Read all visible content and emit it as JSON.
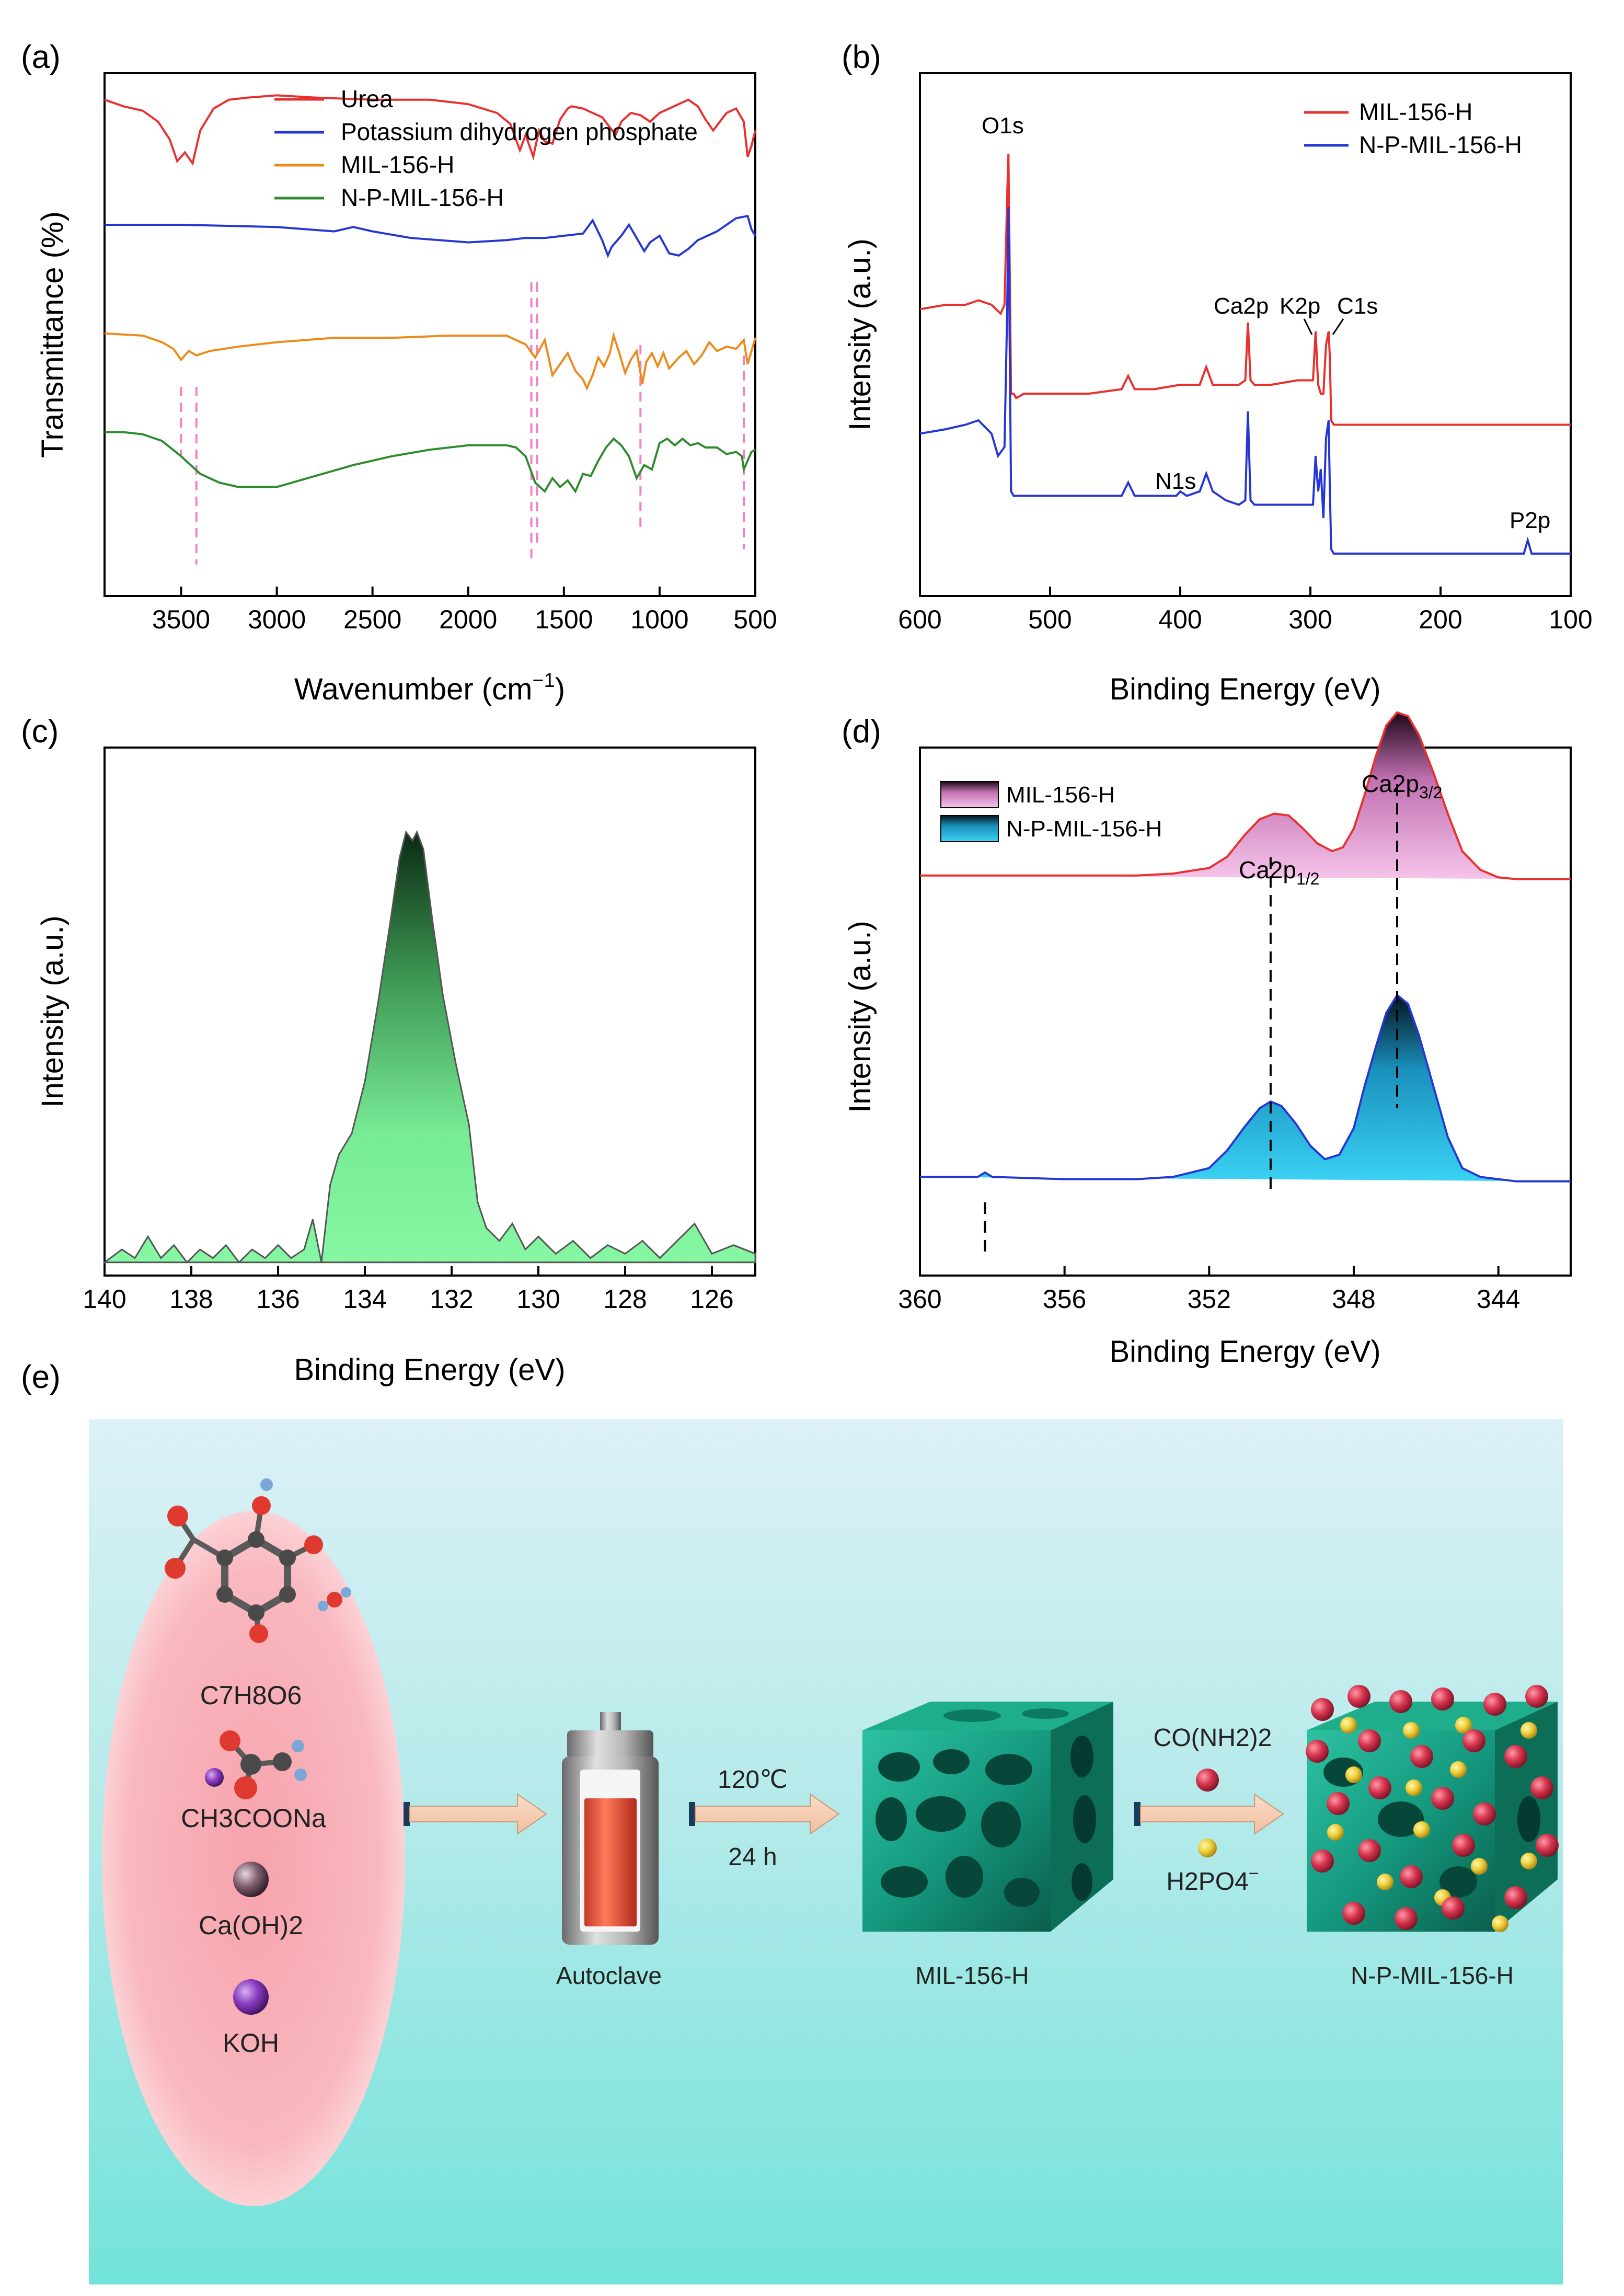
{
  "figure": {
    "panel_labels": [
      "(a)",
      "(b)",
      "(c)",
      "(d)",
      "(e)"
    ],
    "colors": {
      "red": "#e8302e",
      "blue": "#2437d6",
      "orange": "#ee8a1c",
      "green": "#2e8b2e",
      "pink_dash": "#f080c8",
      "axis": "#000000"
    }
  },
  "chart_data": [
    {
      "id": "a",
      "type": "line",
      "xlabel": "Wavenumber (cm",
      "xlabel_sup": "−1",
      "xlabel_tail": ")",
      "ylabel": "Transmittance (%)",
      "xlim": [
        3900,
        500
      ],
      "xticks": [
        "3500",
        "3000",
        "2500",
        "2000",
        "1500",
        "1000",
        "500"
      ],
      "xtick_values": [
        3500,
        3000,
        2500,
        2000,
        1500,
        1000,
        500
      ],
      "legend": [
        "Urea",
        "Potassium dihydrogen phosphate",
        "MIL-156-H",
        "N-P-MIL-156-H"
      ],
      "dashed_markers_cm": [
        3500,
        3420,
        1670,
        1640,
        1100,
        560
      ],
      "series": [
        {
          "name": "Urea",
          "color": "#e8302e",
          "x": [
            3900,
            3800,
            3700,
            3620,
            3560,
            3520,
            3480,
            3440,
            3400,
            3330,
            3250,
            3150,
            3000,
            2800,
            2500,
            2200,
            2000,
            1850,
            1780,
            1730,
            1700,
            1660,
            1630,
            1600,
            1560,
            1520,
            1480,
            1460,
            1400,
            1300,
            1230,
            1200,
            1150,
            1100,
            1050,
            1000,
            900,
            850,
            800,
            760,
            720,
            650,
            600,
            560,
            540,
            520,
            500
          ],
          "y": [
            0.76,
            0.73,
            0.71,
            0.66,
            0.58,
            0.48,
            0.52,
            0.47,
            0.62,
            0.72,
            0.76,
            0.77,
            0.78,
            0.77,
            0.76,
            0.76,
            0.74,
            0.7,
            0.65,
            0.53,
            0.6,
            0.5,
            0.62,
            0.57,
            0.56,
            0.67,
            0.72,
            0.73,
            0.72,
            0.68,
            0.6,
            0.66,
            0.7,
            0.69,
            0.66,
            0.7,
            0.74,
            0.76,
            0.73,
            0.67,
            0.62,
            0.7,
            0.72,
            0.66,
            0.5,
            0.55,
            0.62
          ]
        },
        {
          "name": "Potassium dihydrogen phosphate",
          "color": "#2437d6",
          "x": [
            3900,
            3500,
            3000,
            2700,
            2600,
            2500,
            2300,
            2000,
            1800,
            1700,
            1600,
            1500,
            1400,
            1350,
            1300,
            1270,
            1250,
            1200,
            1160,
            1120,
            1080,
            1050,
            1000,
            950,
            900,
            850,
            800,
            700,
            600,
            540,
            520,
            500
          ],
          "y": [
            0.5,
            0.5,
            0.49,
            0.47,
            0.49,
            0.47,
            0.44,
            0.42,
            0.43,
            0.44,
            0.44,
            0.45,
            0.46,
            0.52,
            0.43,
            0.36,
            0.4,
            0.45,
            0.5,
            0.44,
            0.38,
            0.42,
            0.45,
            0.37,
            0.36,
            0.39,
            0.43,
            0.47,
            0.53,
            0.54,
            0.48,
            0.45
          ]
        },
        {
          "name": "MIL-156-H",
          "color": "#ee8a1c",
          "x": [
            3900,
            3700,
            3600,
            3540,
            3500,
            3460,
            3420,
            3350,
            3200,
            3000,
            2700,
            2400,
            2100,
            1900,
            1800,
            1700,
            1650,
            1600,
            1560,
            1520,
            1480,
            1440,
            1400,
            1380,
            1350,
            1320,
            1290,
            1260,
            1240,
            1210,
            1180,
            1150,
            1120,
            1090,
            1070,
            1040,
            1010,
            980,
            950,
            900,
            860,
            820,
            780,
            740,
            700,
            650,
            600,
            560,
            540,
            520,
            500
          ],
          "y": [
            0.41,
            0.4,
            0.37,
            0.34,
            0.29,
            0.33,
            0.31,
            0.33,
            0.35,
            0.37,
            0.39,
            0.39,
            0.4,
            0.4,
            0.4,
            0.36,
            0.3,
            0.38,
            0.22,
            0.27,
            0.32,
            0.24,
            0.2,
            0.16,
            0.22,
            0.3,
            0.26,
            0.32,
            0.4,
            0.32,
            0.23,
            0.29,
            0.33,
            0.18,
            0.28,
            0.32,
            0.26,
            0.32,
            0.25,
            0.3,
            0.33,
            0.27,
            0.31,
            0.37,
            0.33,
            0.35,
            0.34,
            0.38,
            0.27,
            0.33,
            0.39
          ]
        },
        {
          "name": "N-P-MIL-156-H",
          "color": "#2e8b2e",
          "x": [
            3900,
            3800,
            3700,
            3600,
            3500,
            3400,
            3300,
            3200,
            3000,
            2800,
            2600,
            2400,
            2200,
            2000,
            1900,
            1800,
            1750,
            1700,
            1650,
            1600,
            1560,
            1520,
            1480,
            1440,
            1400,
            1360,
            1320,
            1280,
            1240,
            1200,
            1160,
            1120,
            1080,
            1040,
            1000,
            960,
            920,
            880,
            840,
            800,
            760,
            700,
            650,
            600,
            570,
            560,
            540,
            520,
            500
          ],
          "y": [
            0.27,
            0.27,
            0.26,
            0.23,
            0.16,
            0.08,
            0.04,
            0.02,
            0.02,
            0.07,
            0.12,
            0.16,
            0.19,
            0.21,
            0.21,
            0.21,
            0.2,
            0.16,
            0.04,
            0.0,
            0.06,
            0.02,
            0.05,
            0.0,
            0.08,
            0.07,
            0.14,
            0.2,
            0.24,
            0.21,
            0.16,
            0.06,
            0.12,
            0.1,
            0.22,
            0.24,
            0.21,
            0.24,
            0.21,
            0.22,
            0.2,
            0.2,
            0.17,
            0.18,
            0.16,
            0.1,
            0.14,
            0.18,
            0.19
          ]
        }
      ]
    },
    {
      "id": "b",
      "type": "line",
      "xlabel": "Binding Energy (eV)",
      "ylabel": "Intensity (a.u.)",
      "xlim": [
        600,
        100
      ],
      "xticks": [
        "600",
        "500",
        "400",
        "300",
        "200",
        "100"
      ],
      "xtick_values": [
        600,
        500,
        400,
        300,
        200,
        100
      ],
      "legend": [
        "MIL-156-H",
        "N-P-MIL-156-H"
      ],
      "annotations": [
        "O1s",
        "Ca2p",
        "K2p",
        "C1s",
        "N1s",
        "P2p"
      ],
      "series": [
        {
          "name": "MIL-156-H",
          "color": "#e8302e",
          "x": [
            600,
            580,
            565,
            555,
            545,
            538,
            535,
            533,
            532,
            531,
            530,
            528,
            526,
            520,
            500,
            470,
            445,
            440,
            435,
            420,
            400,
            385,
            380,
            375,
            365,
            355,
            350,
            348,
            346,
            343,
            330,
            310,
            298,
            296,
            294,
            292,
            290,
            288,
            286,
            285,
            284,
            282,
            280,
            250,
            200,
            150,
            135,
            120,
            100
          ],
          "y": [
            0.61,
            0.62,
            0.62,
            0.63,
            0.62,
            0.6,
            0.62,
            0.86,
            0.96,
            0.7,
            0.42,
            0.42,
            0.41,
            0.42,
            0.42,
            0.42,
            0.43,
            0.46,
            0.43,
            0.43,
            0.44,
            0.44,
            0.48,
            0.44,
            0.44,
            0.44,
            0.45,
            0.58,
            0.45,
            0.44,
            0.44,
            0.45,
            0.45,
            0.56,
            0.44,
            0.42,
            0.42,
            0.53,
            0.56,
            0.5,
            0.36,
            0.35,
            0.35,
            0.35,
            0.35,
            0.35,
            0.35,
            0.35,
            0.35
          ]
        },
        {
          "name": "N-P-MIL-156-H",
          "color": "#2437d6",
          "x": [
            600,
            580,
            565,
            555,
            545,
            540,
            535,
            533,
            532,
            531,
            530,
            528,
            525,
            520,
            500,
            470,
            445,
            440,
            435,
            420,
            403,
            400,
            395,
            385,
            380,
            375,
            365,
            355,
            350,
            348,
            346,
            343,
            330,
            310,
            298,
            296,
            294,
            292,
            290,
            288,
            286,
            285,
            284,
            282,
            280,
            250,
            200,
            150,
            136,
            133,
            130,
            120,
            100
          ],
          "y": [
            0.33,
            0.34,
            0.35,
            0.36,
            0.33,
            0.28,
            0.3,
            0.6,
            0.84,
            0.52,
            0.2,
            0.19,
            0.19,
            0.19,
            0.19,
            0.19,
            0.19,
            0.22,
            0.19,
            0.19,
            0.19,
            0.2,
            0.19,
            0.2,
            0.24,
            0.2,
            0.18,
            0.17,
            0.18,
            0.38,
            0.18,
            0.17,
            0.17,
            0.17,
            0.17,
            0.28,
            0.2,
            0.25,
            0.14,
            0.32,
            0.36,
            0.2,
            0.07,
            0.06,
            0.06,
            0.06,
            0.06,
            0.06,
            0.06,
            0.09,
            0.06,
            0.06,
            0.06
          ]
        }
      ]
    },
    {
      "id": "c",
      "type": "area",
      "xlabel": "Binding Energy (eV)",
      "ylabel": "Intensity (a.u.)",
      "xlim": [
        140,
        125
      ],
      "xticks": [
        "140",
        "138",
        "136",
        "134",
        "132",
        "130",
        "128",
        "126"
      ],
      "xtick_values": [
        140,
        138,
        136,
        134,
        132,
        130,
        128,
        126
      ],
      "series": [
        {
          "name": "P2p",
          "color": "#7ef29e",
          "x": [
            140,
            139.6,
            139.3,
            139,
            138.7,
            138.4,
            138.1,
            137.8,
            137.5,
            137.2,
            136.9,
            136.6,
            136.3,
            136.0,
            135.7,
            135.4,
            135.2,
            135.0,
            134.8,
            134.6,
            134.3,
            134.0,
            133.7,
            133.4,
            133.2,
            133.05,
            132.9,
            132.8,
            132.65,
            132.45,
            132.2,
            131.9,
            131.6,
            131.4,
            131.2,
            130.9,
            130.6,
            130.3,
            130.0,
            129.6,
            129.2,
            128.8,
            128.4,
            128.0,
            127.6,
            127.2,
            126.8,
            126.4,
            126.0,
            125.5,
            125
          ],
          "y": [
            0.0,
            0.03,
            0.01,
            0.06,
            0.01,
            0.04,
            0.0,
            0.03,
            0.01,
            0.04,
            0.0,
            0.03,
            0.01,
            0.04,
            0.01,
            0.03,
            0.1,
            0.0,
            0.18,
            0.25,
            0.3,
            0.42,
            0.6,
            0.8,
            0.94,
            1.0,
            0.98,
            1.0,
            0.96,
            0.8,
            0.62,
            0.46,
            0.32,
            0.14,
            0.08,
            0.05,
            0.09,
            0.03,
            0.06,
            0.02,
            0.05,
            0.01,
            0.04,
            0.02,
            0.05,
            0.01,
            0.05,
            0.09,
            0.02,
            0.04,
            0.02
          ]
        }
      ]
    },
    {
      "id": "d",
      "type": "area",
      "xlabel": "Binding Energy (eV)",
      "ylabel": "Intensity (a.u.)",
      "xlim": [
        360,
        342
      ],
      "xticks": [
        "360",
        "356",
        "352",
        "348",
        "344"
      ],
      "xtick_values": [
        360,
        356,
        352,
        348,
        344
      ],
      "legend": [
        "MIL-156-H",
        "N-P-MIL-156-H"
      ],
      "annotations": [
        {
          "base": "Ca2p",
          "sub": "1/2"
        },
        {
          "base": "Ca2p",
          "sub": "3/2"
        }
      ],
      "dashed_markers_ev": [
        350.3,
        346.8,
        358.2
      ],
      "series": [
        {
          "name": "MIL-156-H",
          "color": "#e8302e",
          "x": [
            360,
            358,
            356,
            354,
            353,
            352,
            351.5,
            351,
            350.6,
            350.2,
            349.8,
            349.4,
            349,
            348.6,
            348.3,
            348,
            347.7,
            347.4,
            347.1,
            346.8,
            346.5,
            346.2,
            345.8,
            345.4,
            345,
            344.5,
            344,
            343.5,
            342
          ],
          "y": [
            0.05,
            0.05,
            0.05,
            0.05,
            0.06,
            0.09,
            0.15,
            0.27,
            0.35,
            0.38,
            0.37,
            0.3,
            0.22,
            0.18,
            0.2,
            0.3,
            0.48,
            0.68,
            0.85,
            0.92,
            0.9,
            0.8,
            0.6,
            0.38,
            0.18,
            0.08,
            0.04,
            0.03,
            0.03
          ]
        },
        {
          "name": "N-P-MIL-156-H",
          "color": "#2437d6",
          "x": [
            360,
            358.4,
            358.2,
            358,
            356,
            354,
            353,
            352,
            351.5,
            351,
            350.6,
            350.3,
            350,
            349.6,
            349.2,
            348.8,
            348.4,
            348,
            347.7,
            347.4,
            347.1,
            346.8,
            346.5,
            346.2,
            345.8,
            345.4,
            345,
            344.5,
            344,
            343.5,
            342
          ],
          "y": [
            0.04,
            0.04,
            0.06,
            0.04,
            0.03,
            0.03,
            0.04,
            0.08,
            0.16,
            0.27,
            0.35,
            0.38,
            0.36,
            0.28,
            0.18,
            0.12,
            0.14,
            0.26,
            0.45,
            0.62,
            0.78,
            0.86,
            0.82,
            0.68,
            0.45,
            0.22,
            0.08,
            0.04,
            0.03,
            0.02,
            0.02
          ]
        }
      ]
    }
  ],
  "scheme": {
    "reactants": {
      "r1": "C7H8O6",
      "r2": "CH3COONa",
      "r3": "Ca(OH)2",
      "r4": "KOH"
    },
    "conditions": {
      "temperature": "120℃",
      "time": "24 h"
    },
    "additives": {
      "urea": "CO(NH2)2",
      "phosphate_base": "H2PO4",
      "phosphate_charge": "−"
    },
    "labels": {
      "autoclave": "Autoclave",
      "mof": "MIL-156-H",
      "product": "N-P-MIL-156-H"
    }
  }
}
